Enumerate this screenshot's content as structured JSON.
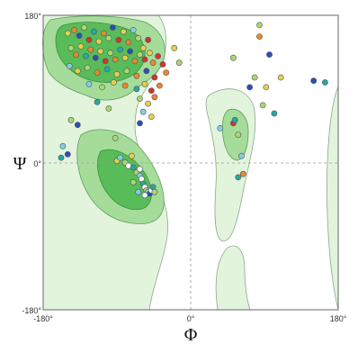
{
  "chart_data": {
    "type": "scatter",
    "title": "",
    "xlabel": "Φ",
    "ylabel": "Ψ",
    "xlim": [
      -180,
      180
    ],
    "ylim": [
      -180,
      180
    ],
    "x_ticks": [
      "-180°",
      "0°",
      "180°"
    ],
    "y_ticks": [
      "180°",
      "0°",
      "-180°"
    ],
    "grid": "dashed zero lines",
    "region_colors": {
      "allowed": "#e3f4dd",
      "favored": "#a6dc9a",
      "core": "#58bc58"
    },
    "point_colors": [
      "#2d4fb0",
      "#27a7a0",
      "#7fd1e0",
      "#a8d96b",
      "#e6d04a",
      "#e6892a",
      "#d0372a",
      "#ffffff"
    ],
    "points": [
      {
        "x": -150,
        "y": 158,
        "c": 4
      },
      {
        "x": -142,
        "y": 162,
        "c": 5
      },
      {
        "x": -136,
        "y": 155,
        "c": 0
      },
      {
        "x": -130,
        "y": 165,
        "c": 3
      },
      {
        "x": -124,
        "y": 150,
        "c": 6
      },
      {
        "x": -118,
        "y": 160,
        "c": 1
      },
      {
        "x": -112,
        "y": 148,
        "c": 4
      },
      {
        "x": -106,
        "y": 158,
        "c": 5
      },
      {
        "x": -100,
        "y": 152,
        "c": 3
      },
      {
        "x": -95,
        "y": 165,
        "c": 0
      },
      {
        "x": -88,
        "y": 150,
        "c": 6
      },
      {
        "x": -82,
        "y": 160,
        "c": 4
      },
      {
        "x": -76,
        "y": 147,
        "c": 5
      },
      {
        "x": -70,
        "y": 162,
        "c": 2
      },
      {
        "x": -64,
        "y": 152,
        "c": 3
      },
      {
        "x": -58,
        "y": 140,
        "c": 4
      },
      {
        "x": -52,
        "y": 150,
        "c": 6
      },
      {
        "x": -146,
        "y": 140,
        "c": 3
      },
      {
        "x": -140,
        "y": 132,
        "c": 5
      },
      {
        "x": -134,
        "y": 142,
        "c": 4
      },
      {
        "x": -128,
        "y": 130,
        "c": 1
      },
      {
        "x": -122,
        "y": 138,
        "c": 5
      },
      {
        "x": -116,
        "y": 128,
        "c": 0
      },
      {
        "x": -110,
        "y": 136,
        "c": 4
      },
      {
        "x": -104,
        "y": 124,
        "c": 6
      },
      {
        "x": -98,
        "y": 134,
        "c": 3
      },
      {
        "x": -92,
        "y": 126,
        "c": 5
      },
      {
        "x": -86,
        "y": 138,
        "c": 1
      },
      {
        "x": -80,
        "y": 128,
        "c": 4
      },
      {
        "x": -74,
        "y": 136,
        "c": 0
      },
      {
        "x": -68,
        "y": 124,
        "c": 5
      },
      {
        "x": -62,
        "y": 132,
        "c": 3
      },
      {
        "x": -56,
        "y": 126,
        "c": 6
      },
      {
        "x": -50,
        "y": 134,
        "c": 4
      },
      {
        "x": -46,
        "y": 122,
        "c": 5
      },
      {
        "x": -40,
        "y": 130,
        "c": 6
      },
      {
        "x": -34,
        "y": 120,
        "c": 6
      },
      {
        "x": -148,
        "y": 118,
        "c": 2
      },
      {
        "x": -138,
        "y": 112,
        "c": 4
      },
      {
        "x": -126,
        "y": 116,
        "c": 3
      },
      {
        "x": -114,
        "y": 110,
        "c": 5
      },
      {
        "x": -102,
        "y": 114,
        "c": 1
      },
      {
        "x": -90,
        "y": 108,
        "c": 4
      },
      {
        "x": -78,
        "y": 112,
        "c": 3
      },
      {
        "x": -66,
        "y": 106,
        "c": 5
      },
      {
        "x": -54,
        "y": 112,
        "c": 0
      },
      {
        "x": -44,
        "y": 104,
        "c": 6
      },
      {
        "x": -30,
        "y": 110,
        "c": 5
      },
      {
        "x": -124,
        "y": 96,
        "c": 2
      },
      {
        "x": -108,
        "y": 92,
        "c": 3
      },
      {
        "x": -94,
        "y": 98,
        "c": 4
      },
      {
        "x": -80,
        "y": 94,
        "c": 5
      },
      {
        "x": -66,
        "y": 90,
        "c": 1
      },
      {
        "x": -56,
        "y": 96,
        "c": 4
      },
      {
        "x": -48,
        "y": 88,
        "c": 6
      },
      {
        "x": -38,
        "y": 94,
        "c": 5
      },
      {
        "x": -62,
        "y": 78,
        "c": 3
      },
      {
        "x": -52,
        "y": 72,
        "c": 4
      },
      {
        "x": -44,
        "y": 80,
        "c": 5
      },
      {
        "x": -58,
        "y": 62,
        "c": 2
      },
      {
        "x": -48,
        "y": 56,
        "c": 4
      },
      {
        "x": -62,
        "y": 48,
        "c": 0
      },
      {
        "x": -114,
        "y": 74,
        "c": 1
      },
      {
        "x": -100,
        "y": 66,
        "c": 3
      },
      {
        "x": -20,
        "y": 140,
        "c": 4
      },
      {
        "x": -14,
        "y": 122,
        "c": 3
      },
      {
        "x": -146,
        "y": 52,
        "c": 3
      },
      {
        "x": -138,
        "y": 46,
        "c": 0
      },
      {
        "x": -156,
        "y": 20,
        "c": 2
      },
      {
        "x": -150,
        "y": 10,
        "c": 0
      },
      {
        "x": -158,
        "y": 6,
        "c": 1
      },
      {
        "x": -92,
        "y": 30,
        "c": 3
      },
      {
        "x": -90,
        "y": 2,
        "c": 4
      },
      {
        "x": -86,
        "y": 6,
        "c": 2
      },
      {
        "x": -80,
        "y": 0,
        "c": 3
      },
      {
        "x": -76,
        "y": -4,
        "c": 7
      },
      {
        "x": -70,
        "y": -6,
        "c": 1
      },
      {
        "x": -66,
        "y": -12,
        "c": 3
      },
      {
        "x": -62,
        "y": -16,
        "c": 2
      },
      {
        "x": -60,
        "y": -20,
        "c": 7
      },
      {
        "x": -58,
        "y": -26,
        "c": 1
      },
      {
        "x": -56,
        "y": -30,
        "c": 7
      },
      {
        "x": -54,
        "y": -34,
        "c": 3
      },
      {
        "x": -52,
        "y": -36,
        "c": 2
      },
      {
        "x": -50,
        "y": -38,
        "c": 0
      },
      {
        "x": -48,
        "y": -34,
        "c": 7
      },
      {
        "x": -46,
        "y": -30,
        "c": 1
      },
      {
        "x": -64,
        "y": -36,
        "c": 2
      },
      {
        "x": -56,
        "y": -40,
        "c": 7
      },
      {
        "x": -44,
        "y": -36,
        "c": 3
      },
      {
        "x": -62,
        "y": -8,
        "c": 7
      },
      {
        "x": -70,
        "y": -24,
        "c": 3
      },
      {
        "x": -72,
        "y": 8,
        "c": 4
      },
      {
        "x": 62,
        "y": 8,
        "c": 2
      },
      {
        "x": 52,
        "y": 48,
        "c": 6
      },
      {
        "x": 36,
        "y": 42,
        "c": 2
      },
      {
        "x": 58,
        "y": 34,
        "c": 3
      },
      {
        "x": 54,
        "y": 52,
        "c": 1
      },
      {
        "x": 64,
        "y": -14,
        "c": 5
      },
      {
        "x": 58,
        "y": -18,
        "c": 1
      },
      {
        "x": 84,
        "y": 168,
        "c": 3
      },
      {
        "x": 84,
        "y": 154,
        "c": 5
      },
      {
        "x": 96,
        "y": 132,
        "c": 0
      },
      {
        "x": 110,
        "y": 104,
        "c": 4
      },
      {
        "x": 78,
        "y": 104,
        "c": 3
      },
      {
        "x": 92,
        "y": 92,
        "c": 4
      },
      {
        "x": 88,
        "y": 70,
        "c": 3
      },
      {
        "x": 72,
        "y": 92,
        "c": 0
      },
      {
        "x": 102,
        "y": 60,
        "c": 1
      },
      {
        "x": 52,
        "y": 128,
        "c": 3
      },
      {
        "x": 150,
        "y": 100,
        "c": 0
      },
      {
        "x": 164,
        "y": 98,
        "c": 1
      }
    ]
  }
}
